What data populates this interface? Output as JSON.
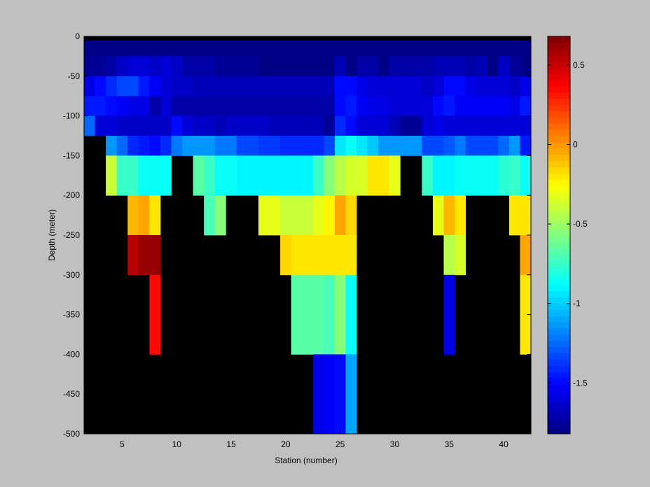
{
  "chart_data": {
    "type": "heatmap",
    "xlabel": "Station (number)",
    "ylabel": "Depth (meter)",
    "xlim": [
      1.5,
      42.5
    ],
    "ylim": [
      -500,
      0
    ],
    "x_ticks": [
      5,
      10,
      15,
      20,
      25,
      30,
      35,
      40
    ],
    "y_ticks": [
      0,
      -50,
      -100,
      -150,
      -200,
      -250,
      -300,
      -350,
      -400,
      -450,
      -500
    ],
    "colorbar": {
      "min": -1.82,
      "max": 0.68,
      "ticks": [
        0.5,
        0,
        -0.5,
        -1,
        -1.5
      ],
      "colormap": "jet"
    },
    "background_color": "#000000",
    "stations": [
      2,
      3,
      4,
      5,
      6,
      7,
      8,
      9,
      10,
      11,
      12,
      13,
      14,
      15,
      16,
      17,
      18,
      19,
      20,
      21,
      22,
      23,
      24,
      25,
      26,
      27,
      28,
      29,
      30,
      31,
      32,
      33,
      34,
      35,
      36,
      37,
      38,
      39,
      40,
      41,
      42
    ],
    "depth_layers": [
      {
        "top": -5,
        "bottom": -25,
        "values": [
          -1.8,
          -1.8,
          -1.8,
          -1.8,
          -1.8,
          -1.8,
          -1.8,
          -1.8,
          -1.8,
          -1.8,
          -1.8,
          -1.8,
          -1.8,
          -1.8,
          -1.8,
          -1.8,
          -1.8,
          -1.8,
          -1.8,
          -1.8,
          -1.8,
          -1.8,
          -1.8,
          -1.8,
          -1.8,
          -1.8,
          -1.8,
          -1.8,
          -1.8,
          -1.8,
          -1.8,
          -1.8,
          -1.8,
          -1.8,
          -1.8,
          -1.8,
          -1.8,
          -1.8,
          -1.8,
          -1.8,
          -1.8
        ]
      },
      {
        "top": -25,
        "bottom": -50,
        "values": [
          -1.78,
          -1.78,
          -1.72,
          -1.66,
          -1.62,
          -1.6,
          -1.66,
          -1.62,
          -1.66,
          -1.72,
          -1.72,
          -1.74,
          -1.76,
          -1.76,
          -1.76,
          -1.76,
          -1.8,
          -1.8,
          -1.8,
          -1.8,
          -1.8,
          -1.8,
          -1.8,
          -1.7,
          -1.8,
          -1.74,
          -1.74,
          -1.8,
          -1.74,
          -1.74,
          -1.74,
          -1.74,
          -1.7,
          -1.7,
          -1.7,
          -1.74,
          -1.7,
          -1.8,
          -1.66,
          -1.78,
          -1.8
        ]
      },
      {
        "top": -50,
        "bottom": -75,
        "values": [
          -1.55,
          -1.48,
          -1.4,
          -1.35,
          -1.35,
          -1.45,
          -1.52,
          -1.6,
          -1.64,
          -1.64,
          -1.7,
          -1.7,
          -1.7,
          -1.7,
          -1.7,
          -1.7,
          -1.7,
          -1.7,
          -1.7,
          -1.7,
          -1.7,
          -1.7,
          -1.7,
          -1.5,
          -1.48,
          -1.56,
          -1.6,
          -1.62,
          -1.62,
          -1.62,
          -1.62,
          -1.66,
          -1.6,
          -1.5,
          -1.5,
          -1.55,
          -1.6,
          -1.6,
          -1.6,
          -1.64,
          -1.55
        ]
      },
      {
        "top": -75,
        "bottom": -100,
        "values": [
          -1.45,
          -1.45,
          -1.5,
          -1.52,
          -1.55,
          -1.55,
          -1.72,
          -1.6,
          -1.74,
          -1.74,
          -1.74,
          -1.74,
          -1.74,
          -1.74,
          -1.74,
          -1.74,
          -1.74,
          -1.74,
          -1.74,
          -1.74,
          -1.74,
          -1.74,
          -1.74,
          -1.5,
          -1.44,
          -1.52,
          -1.55,
          -1.55,
          -1.62,
          -1.62,
          -1.62,
          -1.62,
          -1.5,
          -1.45,
          -1.52,
          -1.52,
          -1.52,
          -1.52,
          -1.52,
          -1.56,
          -1.46
        ]
      },
      {
        "top": -100,
        "bottom": -125,
        "values": [
          -1.25,
          -1.6,
          -1.62,
          -1.64,
          -1.64,
          -1.64,
          -1.64,
          -1.64,
          -1.5,
          -1.62,
          -1.64,
          -1.64,
          -1.7,
          -1.64,
          -1.64,
          -1.64,
          -1.64,
          -1.7,
          -1.7,
          -1.7,
          -1.7,
          -1.7,
          -1.78,
          -1.4,
          -1.48,
          -1.6,
          -1.62,
          -1.62,
          -1.7,
          -1.78,
          -1.78,
          -1.6,
          -1.55,
          -1.62,
          -1.62,
          -1.62,
          -1.62,
          -1.62,
          -1.62,
          -1.62,
          -1.62
        ]
      },
      {
        "top": -125,
        "bottom": -150,
        "values": [
          null,
          null,
          -1.12,
          -1.25,
          -1.42,
          -1.45,
          -1.48,
          -1.4,
          -1.22,
          -1.12,
          -1.12,
          -1.15,
          -1.22,
          -1.22,
          -1.32,
          -1.32,
          -1.38,
          -1.38,
          -1.42,
          -1.42,
          -1.42,
          -1.42,
          -1.32,
          -0.95,
          -0.85,
          -0.95,
          -1.02,
          -1.12,
          -1.12,
          -1.12,
          -1.12,
          -1.35,
          -1.35,
          -1.3,
          -1.22,
          -1.35,
          -1.35,
          -1.35,
          -1.25,
          -1.15,
          -1.45
        ]
      },
      {
        "top": -150,
        "bottom": -175,
        "values": [
          null,
          null,
          -0.4,
          -0.75,
          -0.75,
          -0.85,
          -0.85,
          -0.85,
          null,
          null,
          -0.65,
          -0.75,
          -0.85,
          -0.85,
          -0.9,
          -0.9,
          -0.9,
          -0.9,
          -0.9,
          -0.9,
          -0.9,
          -0.75,
          -0.55,
          -0.45,
          -0.35,
          -0.35,
          -0.2,
          -0.2,
          -0.3,
          null,
          null,
          -0.75,
          -0.9,
          -0.9,
          -0.85,
          -0.85,
          -0.85,
          -0.85,
          -0.8,
          -0.75,
          -0.85
        ]
      },
      {
        "top": -175,
        "bottom": -200,
        "values": [
          null,
          null,
          -0.4,
          -0.75,
          -0.75,
          -0.85,
          -0.85,
          -0.85,
          null,
          null,
          -0.65,
          -0.75,
          -0.85,
          -0.85,
          -0.9,
          -0.9,
          -0.9,
          -0.9,
          -0.9,
          -0.9,
          -0.9,
          -0.75,
          -0.55,
          -0.45,
          -0.35,
          -0.35,
          -0.2,
          -0.2,
          -0.3,
          null,
          null,
          -0.75,
          -0.9,
          -0.9,
          -0.85,
          -0.85,
          -0.85,
          -0.85,
          -0.8,
          -0.75,
          -0.85
        ]
      },
      {
        "top": -200,
        "bottom": -225,
        "values": [
          null,
          null,
          null,
          null,
          -0.1,
          -0.05,
          -0.2,
          null,
          null,
          null,
          null,
          -0.7,
          -0.55,
          null,
          null,
          null,
          -0.3,
          -0.3,
          -0.4,
          -0.4,
          -0.4,
          -0.3,
          -0.25,
          -0.05,
          -0.15,
          null,
          null,
          null,
          null,
          null,
          null,
          null,
          -0.3,
          -0.1,
          -0.2,
          null,
          null,
          null,
          null,
          -0.2,
          -0.2
        ]
      },
      {
        "top": -225,
        "bottom": -250,
        "values": [
          null,
          null,
          null,
          null,
          -0.1,
          -0.05,
          -0.2,
          null,
          null,
          null,
          null,
          -0.7,
          -0.55,
          null,
          null,
          null,
          -0.3,
          -0.3,
          -0.4,
          -0.4,
          -0.4,
          -0.3,
          -0.25,
          -0.05,
          -0.15,
          null,
          null,
          null,
          null,
          null,
          null,
          null,
          -0.3,
          -0.1,
          -0.2,
          null,
          null,
          null,
          null,
          -0.2,
          -0.2
        ]
      },
      {
        "top": -250,
        "bottom": -275,
        "values": [
          null,
          null,
          null,
          null,
          0.55,
          0.62,
          0.62,
          null,
          null,
          null,
          null,
          null,
          null,
          null,
          null,
          null,
          null,
          null,
          -0.15,
          -0.2,
          -0.2,
          -0.2,
          -0.2,
          -0.2,
          -0.2,
          null,
          null,
          null,
          null,
          null,
          null,
          null,
          null,
          -0.45,
          -0.35,
          null,
          null,
          null,
          null,
          null,
          -0.05
        ]
      },
      {
        "top": -275,
        "bottom": -300,
        "values": [
          null,
          null,
          null,
          null,
          0.55,
          0.62,
          0.62,
          null,
          null,
          null,
          null,
          null,
          null,
          null,
          null,
          null,
          null,
          null,
          -0.15,
          -0.2,
          -0.2,
          -0.2,
          -0.2,
          -0.2,
          -0.2,
          null,
          null,
          null,
          null,
          null,
          null,
          null,
          null,
          -0.45,
          -0.35,
          null,
          null,
          null,
          null,
          null,
          -0.05
        ]
      },
      {
        "top": -300,
        "bottom": -325,
        "values": [
          null,
          null,
          null,
          null,
          null,
          null,
          0.35,
          null,
          null,
          null,
          null,
          null,
          null,
          null,
          null,
          null,
          null,
          null,
          null,
          -0.65,
          -0.65,
          -0.65,
          -0.7,
          -0.55,
          -0.85,
          null,
          null,
          null,
          null,
          null,
          null,
          null,
          null,
          -1.55,
          null,
          null,
          null,
          null,
          null,
          null,
          -0.2
        ]
      },
      {
        "top": -325,
        "bottom": -350,
        "values": [
          null,
          null,
          null,
          null,
          null,
          null,
          0.35,
          null,
          null,
          null,
          null,
          null,
          null,
          null,
          null,
          null,
          null,
          null,
          null,
          -0.65,
          -0.65,
          -0.65,
          -0.7,
          -0.55,
          -0.85,
          null,
          null,
          null,
          null,
          null,
          null,
          null,
          null,
          -1.55,
          null,
          null,
          null,
          null,
          null,
          null,
          -0.2
        ]
      },
      {
        "top": -350,
        "bottom": -375,
        "values": [
          null,
          null,
          null,
          null,
          null,
          null,
          0.35,
          null,
          null,
          null,
          null,
          null,
          null,
          null,
          null,
          null,
          null,
          null,
          null,
          -0.65,
          -0.65,
          -0.65,
          -0.7,
          -0.55,
          -0.85,
          null,
          null,
          null,
          null,
          null,
          null,
          null,
          null,
          -1.55,
          null,
          null,
          null,
          null,
          null,
          null,
          -0.2
        ]
      },
      {
        "top": -375,
        "bottom": -400,
        "values": [
          null,
          null,
          null,
          null,
          null,
          null,
          0.35,
          null,
          null,
          null,
          null,
          null,
          null,
          null,
          null,
          null,
          null,
          null,
          null,
          -0.65,
          -0.65,
          -0.65,
          -0.7,
          -0.55,
          -0.85,
          null,
          null,
          null,
          null,
          null,
          null,
          null,
          null,
          -1.55,
          null,
          null,
          null,
          null,
          null,
          null,
          -0.2
        ]
      },
      {
        "top": -400,
        "bottom": -425,
        "values": [
          null,
          null,
          null,
          null,
          null,
          null,
          null,
          null,
          null,
          null,
          null,
          null,
          null,
          null,
          null,
          null,
          null,
          null,
          null,
          null,
          null,
          -1.58,
          -1.52,
          -1.5,
          -1.1,
          null,
          null,
          null,
          null,
          null,
          null,
          null,
          null,
          null,
          null,
          null,
          null,
          null,
          null,
          null,
          null
        ]
      },
      {
        "top": -425,
        "bottom": -500,
        "values": [
          null,
          null,
          null,
          null,
          null,
          null,
          null,
          null,
          null,
          null,
          null,
          null,
          null,
          null,
          null,
          null,
          null,
          null,
          null,
          null,
          null,
          -1.58,
          -1.52,
          -1.5,
          -1.1,
          null,
          null,
          null,
          null,
          null,
          null,
          null,
          null,
          null,
          null,
          null,
          null,
          null,
          null,
          null,
          null
        ]
      }
    ]
  }
}
